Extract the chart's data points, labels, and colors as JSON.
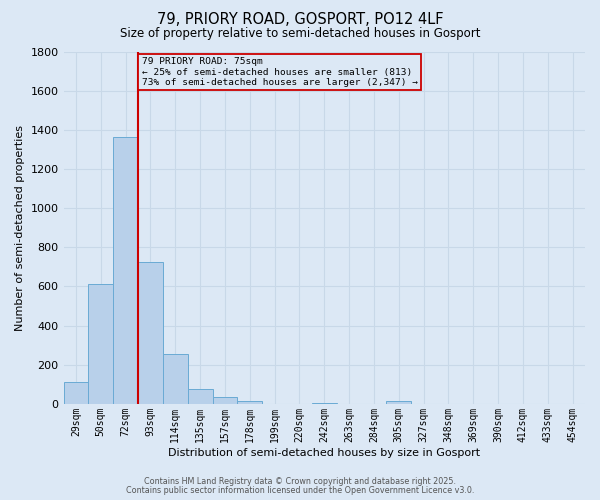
{
  "title1": "79, PRIORY ROAD, GOSPORT, PO12 4LF",
  "title2": "Size of property relative to semi-detached houses in Gosport",
  "xlabel": "Distribution of semi-detached houses by size in Gosport",
  "ylabel": "Number of semi-detached properties",
  "categories": [
    "29sqm",
    "50sqm",
    "72sqm",
    "93sqm",
    "114sqm",
    "135sqm",
    "157sqm",
    "178sqm",
    "199sqm",
    "220sqm",
    "242sqm",
    "263sqm",
    "284sqm",
    "305sqm",
    "327sqm",
    "348sqm",
    "369sqm",
    "390sqm",
    "412sqm",
    "433sqm",
    "454sqm"
  ],
  "values": [
    113,
    613,
    1363,
    723,
    253,
    78,
    35,
    13,
    0,
    0,
    5,
    0,
    0,
    13,
    0,
    0,
    0,
    0,
    0,
    0,
    0
  ],
  "bar_color": "#b8d0ea",
  "bar_edge_color": "#6aaad4",
  "bar_edge_width": 0.7,
  "grid_color": "#c8d8e8",
  "background_color": "#dce8f5",
  "red_line_color": "#cc0000",
  "red_line_index": 2,
  "annotation_text": "79 PRIORY ROAD: 75sqm\n← 25% of semi-detached houses are smaller (813)\n73% of semi-detached houses are larger (2,347) →",
  "ylim": [
    0,
    1800
  ],
  "yticks": [
    0,
    200,
    400,
    600,
    800,
    1000,
    1200,
    1400,
    1600,
    1800
  ],
  "footer1": "Contains HM Land Registry data © Crown copyright and database right 2025.",
  "footer2": "Contains public sector information licensed under the Open Government Licence v3.0."
}
